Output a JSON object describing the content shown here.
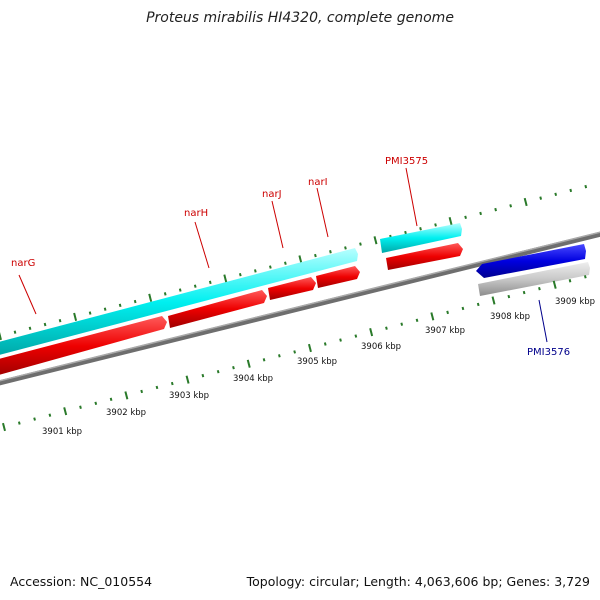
{
  "title": "Proteus mirabilis HI4320, complete genome",
  "footer": {
    "accession": "Accession: NC_010554",
    "summary": "Topology: circular; Length: 4,063,606 bp; Genes: 3,729"
  },
  "colors": {
    "gene_top_strand": "#00ffff",
    "gene_forward": "#ff0000",
    "gene_reverse": "#0000ff",
    "gene_pseudo": "#c0c0c0",
    "backbone": "#888888",
    "tick": "#2a7a2a",
    "label_forward": "#cc0000",
    "label_reverse": "#00008b"
  },
  "genes": [
    {
      "name": "narG",
      "label_color": "red"
    },
    {
      "name": "narH",
      "label_color": "red"
    },
    {
      "name": "narJ",
      "label_color": "red"
    },
    {
      "name": "narI",
      "label_color": "red"
    },
    {
      "name": "PMI3575",
      "label_color": "red"
    },
    {
      "name": "PMI3576",
      "label_color": "blue"
    }
  ],
  "scale_labels": [
    "3901 kbp",
    "3902 kbp",
    "3903 kbp",
    "3904 kbp",
    "3905 kbp",
    "3906 kbp",
    "3907 kbp",
    "3908 kbp",
    "3909 kbp"
  ]
}
